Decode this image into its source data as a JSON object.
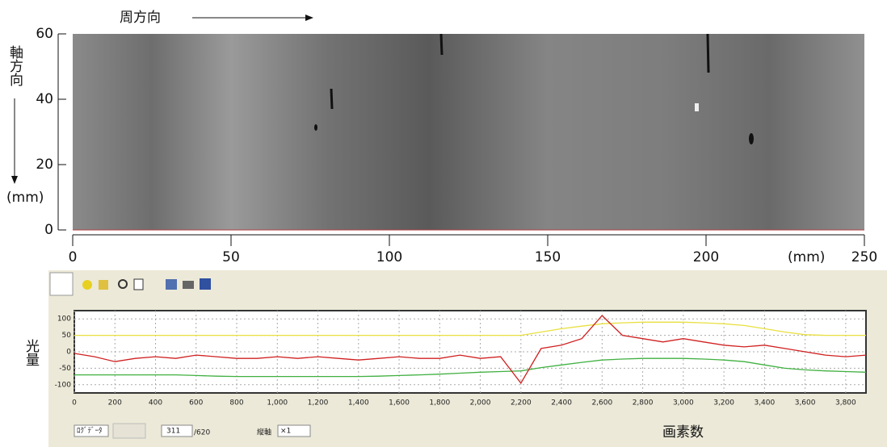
{
  "chart_data": [
    {
      "type": "image",
      "x_title": "周方向",
      "y_title": "軸方向",
      "y_unit": "(mm)",
      "x_unit": "(mm)",
      "xlim": [
        0,
        250
      ],
      "xticks": [
        0,
        50,
        100,
        150,
        200,
        250
      ],
      "ylim": [
        0,
        60
      ],
      "yticks": [
        0,
        20,
        40,
        60
      ]
    },
    {
      "type": "line",
      "y_title": "光量",
      "x_title": "画素数",
      "grid": true,
      "xlim": [
        0,
        3900
      ],
      "xticks": [
        0,
        200,
        400,
        600,
        800,
        {
          "value": 1000,
          "label": "1,000"
        },
        {
          "value": 1200,
          "label": "1,200"
        },
        {
          "value": 1400,
          "label": "1,400"
        },
        {
          "value": 1600,
          "label": "1,600"
        },
        {
          "value": 1800,
          "label": "1,800"
        },
        {
          "value": 2000,
          "label": "2,000"
        },
        {
          "value": 2200,
          "label": "2,200"
        },
        {
          "value": 2400,
          "label": "2,400"
        },
        {
          "value": 2600,
          "label": "2,600"
        },
        {
          "value": 2800,
          "label": "2,800"
        },
        {
          "value": 3000,
          "label": "3,000"
        },
        {
          "value": 3200,
          "label": "3,200"
        },
        {
          "value": 3400,
          "label": "3,400"
        },
        {
          "value": 3600,
          "label": "3,600"
        },
        {
          "value": 3800,
          "label": "3,800"
        }
      ],
      "ylim": [
        -125,
        125
      ],
      "yticks": [
        -100,
        -50,
        0,
        50,
        100
      ],
      "x": [
        0,
        100,
        200,
        300,
        400,
        500,
        600,
        700,
        800,
        900,
        1000,
        1100,
        1200,
        1300,
        1400,
        1500,
        1600,
        1700,
        1800,
        1900,
        2000,
        2100,
        2200,
        2300,
        2400,
        2500,
        2600,
        2700,
        2800,
        2900,
        3000,
        3100,
        3200,
        3300,
        3400,
        3500,
        3600,
        3700,
        3800,
        3900
      ],
      "series": [
        {
          "color": "#e8e040",
          "values": [
            50,
            50,
            50,
            50,
            50,
            50,
            50,
            50,
            50,
            50,
            50,
            50,
            50,
            50,
            50,
            50,
            50,
            50,
            50,
            50,
            50,
            50,
            50,
            60,
            70,
            78,
            85,
            88,
            90,
            90,
            90,
            88,
            85,
            80,
            70,
            60,
            52,
            50,
            50,
            50
          ]
        },
        {
          "color": "#40b040",
          "values": [
            -70,
            -70,
            -70,
            -70,
            -70,
            -70,
            -72,
            -74,
            -75,
            -75,
            -75,
            -75,
            -75,
            -75,
            -75,
            -74,
            -72,
            -70,
            -68,
            -65,
            -62,
            -60,
            -58,
            -48,
            -40,
            -32,
            -25,
            -22,
            -20,
            -20,
            -20,
            -22,
            -25,
            -30,
            -40,
            -50,
            -55,
            -58,
            -60,
            -62
          ]
        },
        {
          "color": "#d02020",
          "values": [
            -5,
            -15,
            -30,
            -20,
            -15,
            -20,
            -10,
            -15,
            -20,
            -20,
            -15,
            -20,
            -15,
            -20,
            -25,
            -20,
            -15,
            -20,
            -20,
            -10,
            -20,
            -15,
            -95,
            10,
            20,
            40,
            110,
            50,
            40,
            30,
            40,
            30,
            20,
            15,
            20,
            10,
            0,
            -10,
            -15,
            -10
          ]
        }
      ]
    }
  ],
  "controls": {
    "mode": "ﾛｸﾞﾃﾞｰﾀ",
    "frame": "311",
    "frame_total": "/620",
    "axis_label": "縦軸",
    "scale": "×1"
  }
}
